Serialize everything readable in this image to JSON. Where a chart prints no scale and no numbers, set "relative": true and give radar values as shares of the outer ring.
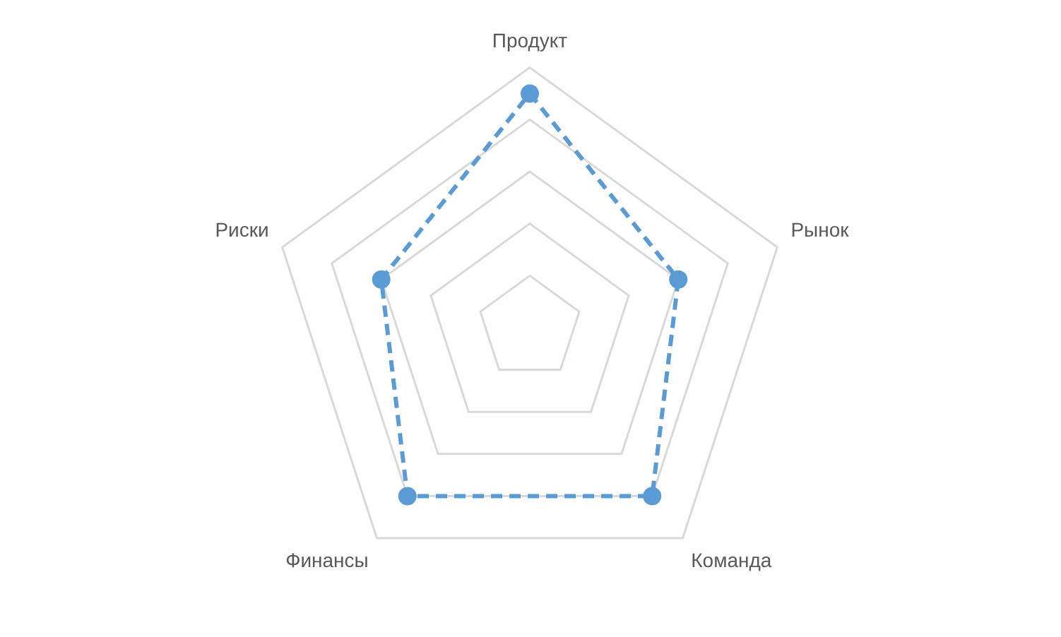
{
  "chart_data": {
    "type": "radar",
    "relative": true,
    "grid": true,
    "marker": "circle",
    "line_style": "dashed",
    "categories": [
      "Продукт",
      "Рынок",
      "Команда",
      "Финансы",
      "Риски"
    ],
    "series": [
      {
        "color": "#5b9bd5",
        "values": [
          0.9,
          0.6,
          0.8,
          0.8,
          0.6
        ]
      }
    ]
  }
}
